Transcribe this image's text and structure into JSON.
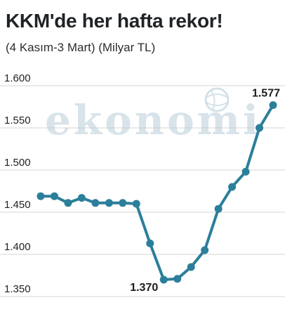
{
  "title": "KKM'de her hafta rekor!",
  "subtitle": "(4 Kasım-3 Mart) (Milyar TL)",
  "watermark": "ekonomi",
  "colors": {
    "line": "#2c7f9a",
    "grid": "#d6d6d6",
    "text": "#1f2326"
  },
  "chart_data": {
    "type": "line",
    "title": "KKM'de her hafta rekor!",
    "subtitle": "(4 Kasım-3 Mart) (Milyar TL)",
    "ylim": [
      1350,
      1600
    ],
    "yticks": [
      1600,
      1550,
      1500,
      1450,
      1400,
      1350
    ],
    "ytick_labels": [
      "1.600",
      "1.550",
      "1.500",
      "1.450",
      "1.400",
      "1.350"
    ],
    "grid": true,
    "series": [
      {
        "values": [
          1469,
          1469,
          1461,
          1467,
          1461,
          1461,
          1461,
          1460,
          1413,
          1370,
          1371,
          1385,
          1405,
          1454,
          1480,
          1498,
          1550,
          1577
        ]
      }
    ],
    "annotations": [
      {
        "index": 9,
        "text": "1.370"
      },
      {
        "index": 17,
        "text": "1.577"
      }
    ]
  }
}
